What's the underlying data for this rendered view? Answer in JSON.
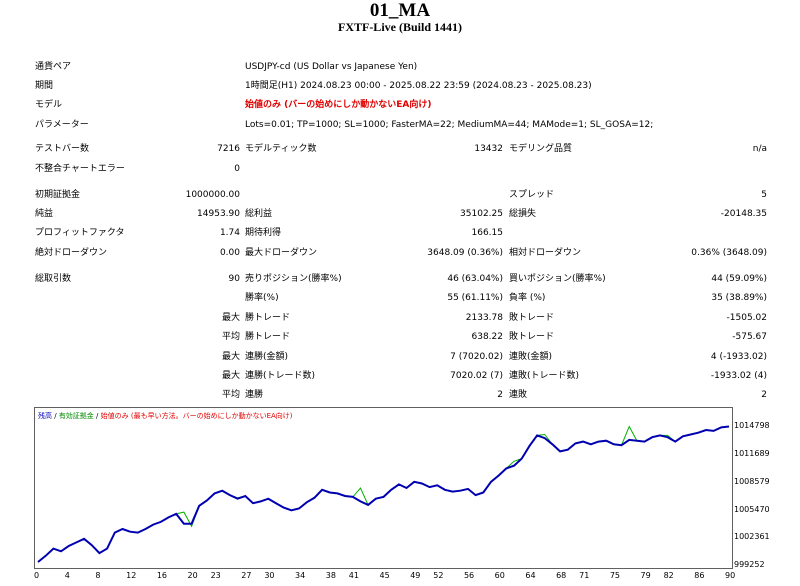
{
  "report": {
    "title": "01_MA",
    "server": "FXTF-Live (Build 1441)"
  },
  "settings": [
    {
      "label": "通貨ペア",
      "value": "USDJPY-cd (US Dollar vs Japanese Yen)"
    },
    {
      "label": "期間",
      "value": "1時間足(H1) 2024.08.23 00:00 - 2025.08.22 23:59 (2024.08.23 - 2025.08.23)"
    },
    {
      "label": "モデル",
      "value": "始値のみ (バーの始めにしか動かないEA向け)"
    },
    {
      "label": "パラメーター",
      "value": "Lots=0.01; TP=1000; SL=1000; FasterMA=22; MediumMA=44; MAMode=1; SL_GOSA=12;"
    }
  ],
  "stats": {
    "bars_label": "テストバー数",
    "bars": "7216",
    "ticks_label": "モデルティック数",
    "ticks": "13432",
    "quality_label": "モデリング品質",
    "quality": "n/a",
    "mismatch_label": "不整合チャートエラー",
    "mismatch": "0",
    "deposit_label": "初期証拠金",
    "deposit": "1000000.00",
    "spread_label": "スプレッド",
    "spread": "5",
    "net_label": "純益",
    "net": "14953.90",
    "gross_profit_label": "総利益",
    "gross_profit": "35102.25",
    "gross_loss_label": "総損失",
    "gross_loss": "-20148.35",
    "pf_label": "プロフィットファクタ",
    "pf": "1.74",
    "payoff_label": "期待利得",
    "payoff": "166.15",
    "abs_dd_label": "絶対ドローダウン",
    "abs_dd": "0.00",
    "max_dd_label": "最大ドローダウン",
    "max_dd": "3648.09 (0.36%)",
    "rel_dd_label": "相対ドローダウン",
    "rel_dd": "0.36% (3648.09)",
    "trades_label": "総取引数",
    "trades": "90",
    "short_label": "売りポジション(勝率%)",
    "short": "46 (63.04%)",
    "long_label": "買いポジション(勝率%)",
    "long": "44 (59.09%)",
    "win_rate_label": "勝率(%)",
    "win_rate": "55 (61.11%)",
    "loss_rate_label": "負率 (%)",
    "loss_rate": "35 (38.89%)",
    "largest_label": "最大",
    "largest_win_label": "勝トレード",
    "largest_win": "2133.78",
    "largest_loss_label": "敗トレード",
    "largest_loss": "-1505.02",
    "avg_label": "平均",
    "avg_win_label": "勝トレード",
    "avg_win": "638.22",
    "avg_loss_label": "敗トレード",
    "avg_loss": "-575.67",
    "max_cons_label": "最大",
    "max_cons_wins_label": "連勝(金額)",
    "max_cons_wins": "7 (7020.02)",
    "max_cons_losses_label": "連敗(金額)",
    "max_cons_losses": "4 (-1933.02)",
    "max_cons2_label": "最大",
    "max_cons_profit_label": "連勝(トレード数)",
    "max_cons_profit": "7020.02 (7)",
    "max_cons_loss_label": "連敗(トレード数)",
    "max_cons_loss": "-1933.02 (4)",
    "avg_cons_label": "平均",
    "avg_cons_wins_label": "連勝",
    "avg_cons_wins": "2",
    "avg_cons_losses_label": "連敗",
    "avg_cons_losses": "2"
  },
  "chart_data": {
    "type": "line",
    "legend": {
      "balance": "残高",
      "sep1": " / ",
      "equity": "有効証拠金",
      "sep2": " / ",
      "model": "始値のみ (最も早い方法。バーの始めにしか動かないEA向け)"
    },
    "colors": {
      "balance": "#0000b0",
      "equity": "#00b000",
      "model": "#e00000"
    },
    "ylim": [
      999252,
      1016300
    ],
    "y_ticks": [
      "1014798",
      "1011689",
      "1008579",
      "1005470",
      "1002361",
      "999252"
    ],
    "x_ticks": [
      "0",
      "4",
      "8",
      "12",
      "16",
      "20",
      "23",
      "27",
      "30",
      "34",
      "38",
      "41",
      "45",
      "49",
      "52",
      "56",
      "60",
      "64",
      "68",
      "71",
      "75",
      "79",
      "82",
      "86",
      "90"
    ],
    "series": [
      {
        "name": "残高",
        "x": [
          0,
          1,
          2,
          3,
          4,
          5,
          6,
          7,
          8,
          9,
          10,
          11,
          12,
          13,
          14,
          15,
          16,
          17,
          18,
          19,
          20,
          21,
          22,
          23,
          24,
          25,
          26,
          27,
          28,
          29,
          30,
          31,
          32,
          33,
          34,
          35,
          36,
          37,
          38,
          39,
          40,
          41,
          42,
          43,
          44,
          45,
          46,
          47,
          48,
          49,
          50,
          51,
          52,
          53,
          54,
          55,
          56,
          57,
          58,
          59,
          60,
          61,
          62,
          63,
          64,
          65,
          66,
          67,
          68,
          69,
          70,
          71,
          72,
          73,
          74,
          75,
          76,
          77,
          78,
          79,
          80,
          81,
          82,
          83,
          84,
          85,
          86,
          87,
          88,
          89,
          90
        ],
        "values": [
          999700,
          1000400,
          1001200,
          1000900,
          1001500,
          1001900,
          1002300,
          1001600,
          1000700,
          1001200,
          1003000,
          1003400,
          1003100,
          1003000,
          1003400,
          1003900,
          1004200,
          1004700,
          1005100,
          1004000,
          1004000,
          1006000,
          1006600,
          1007400,
          1007700,
          1007200,
          1006800,
          1007100,
          1006300,
          1006500,
          1006800,
          1006300,
          1005800,
          1005500,
          1005700,
          1006400,
          1006900,
          1007800,
          1007500,
          1007400,
          1007100,
          1007000,
          1006500,
          1006100,
          1006800,
          1007000,
          1007800,
          1008400,
          1008000,
          1008700,
          1008500,
          1008100,
          1008300,
          1007800,
          1007600,
          1007700,
          1007900,
          1007200,
          1007500,
          1008700,
          1009400,
          1010200,
          1010500,
          1011300,
          1012700,
          1013900,
          1013600,
          1012900,
          1012100,
          1012300,
          1013000,
          1013200,
          1012900,
          1013200,
          1013300,
          1012900,
          1012800,
          1013400,
          1013300,
          1013200,
          1013700,
          1013900,
          1013700,
          1013200,
          1013800,
          1014000,
          1014200,
          1014500,
          1014400,
          1014800,
          1014900
        ]
      },
      {
        "name": "有効証拠金",
        "x": [
          0,
          19,
          20,
          26,
          42,
          62,
          66,
          77,
          82,
          90
        ],
        "values": [
          999700,
          1005300,
          1003700,
          1006900,
          1008000,
          1011000,
          1014000,
          1014900,
          1013900,
          1014900
        ]
      }
    ]
  }
}
